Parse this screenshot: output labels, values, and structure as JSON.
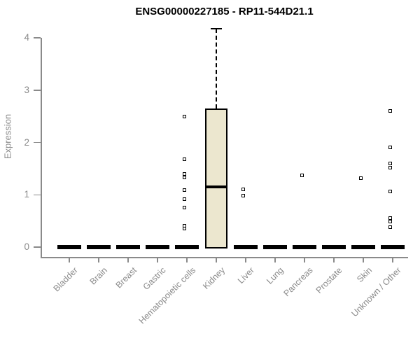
{
  "chart_data": {
    "type": "box",
    "title": "ENSG00000227185 - RP11-544D21.1",
    "ylabel": "Expression",
    "xlabel": "",
    "ylim": [
      0,
      4.2
    ],
    "yticks": [
      0,
      1,
      2,
      3,
      4
    ],
    "grid": false,
    "legend": false,
    "categories": [
      "Bladder",
      "Brain",
      "Breast",
      "Gastric",
      "Hematopoietic cells",
      "Kidney",
      "Liver",
      "Lung",
      "Pancreas",
      "Prostate",
      "Skin",
      "Unknown / Other"
    ],
    "boxes": [
      {
        "category": "Bladder",
        "min": 0,
        "q1": 0,
        "median": 0,
        "q3": 0,
        "max": 0
      },
      {
        "category": "Brain",
        "min": 0,
        "q1": 0,
        "median": 0,
        "q3": 0,
        "max": 0
      },
      {
        "category": "Breast",
        "min": 0,
        "q1": 0,
        "median": 0,
        "q3": 0,
        "max": 0
      },
      {
        "category": "Gastric",
        "min": 0,
        "q1": 0,
        "median": 0,
        "q3": 0,
        "max": 0
      },
      {
        "category": "Hematopoietic cells",
        "min": 0,
        "q1": 0,
        "median": 0,
        "q3": 0,
        "max": 0
      },
      {
        "category": "Kidney",
        "min": 0,
        "q1": 0,
        "median": 1.15,
        "q3": 2.65,
        "max": 4.17
      },
      {
        "category": "Liver",
        "min": 0,
        "q1": 0,
        "median": 0,
        "q3": 0,
        "max": 0
      },
      {
        "category": "Lung",
        "min": 0,
        "q1": 0,
        "median": 0,
        "q3": 0,
        "max": 0
      },
      {
        "category": "Pancreas",
        "min": 0,
        "q1": 0,
        "median": 0,
        "q3": 0,
        "max": 0
      },
      {
        "category": "Prostate",
        "min": 0,
        "q1": 0,
        "median": 0,
        "q3": 0,
        "max": 0
      },
      {
        "category": "Skin",
        "min": 0,
        "q1": 0,
        "median": 0,
        "q3": 0,
        "max": 0
      },
      {
        "category": "Unknown / Other",
        "min": 0,
        "q1": 0,
        "median": 0,
        "q3": 0,
        "max": 0
      }
    ],
    "outliers": [
      {
        "category": "Hematopoietic cells",
        "values": [
          2.49,
          1.67,
          1.39,
          1.32,
          1.08,
          0.91,
          0.75,
          0.4,
          0.35
        ]
      },
      {
        "category": "Liver",
        "values": [
          1.1,
          0.98
        ]
      },
      {
        "category": "Pancreas",
        "values": [
          1.37
        ]
      },
      {
        "category": "Skin",
        "values": [
          1.31
        ]
      },
      {
        "category": "Unknown / Other",
        "values": [
          2.6,
          1.9,
          1.59,
          1.51,
          1.06,
          0.55,
          0.48,
          0.38
        ]
      }
    ],
    "colors": {
      "box_fill": "#ece7cf",
      "box_stroke": "#000000",
      "median": "#000000",
      "outlier_stroke": "#000000",
      "axis": "#8a8a8a",
      "tick_text": "#8a8a8a",
      "title_text": "#000000",
      "background": "#ffffff"
    }
  }
}
